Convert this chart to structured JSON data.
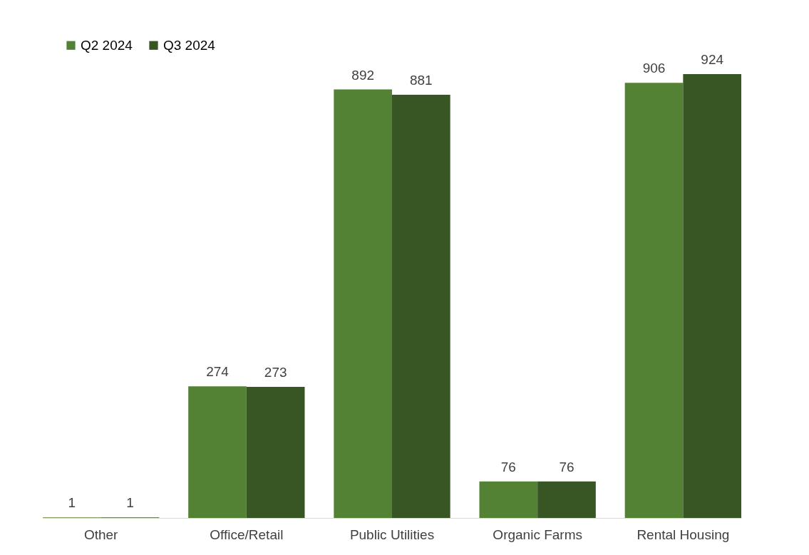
{
  "chart_data": {
    "type": "bar",
    "categories": [
      "Other",
      "Office/Retail",
      "Public Utilities",
      "Organic Farms",
      "Rental Housing"
    ],
    "series": [
      {
        "name": "Q2 2024",
        "color": "#548235",
        "values": [
          1,
          274,
          892,
          76,
          906
        ]
      },
      {
        "name": "Q3 2024",
        "color": "#375623",
        "values": [
          1,
          273,
          881,
          76,
          924
        ]
      }
    ],
    "data_labels": true,
    "legend": "top left",
    "grid": false
  }
}
